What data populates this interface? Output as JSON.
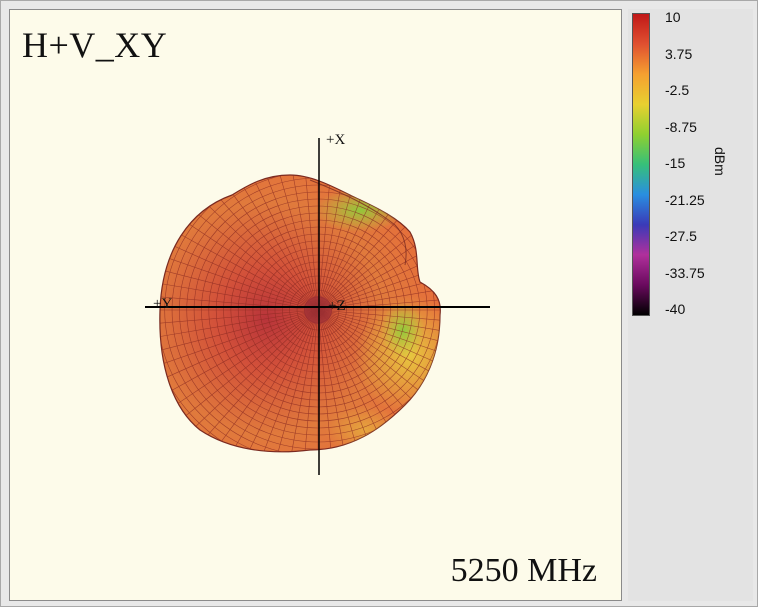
{
  "colors": {
    "plot_background": "#fdfbea",
    "panel_background": "#e3e3e3",
    "colormap": [
      "#000000",
      "#6a0a5e",
      "#b0309c",
      "#3a3ab8",
      "#2a8ee0",
      "#36c07a",
      "#8fd030",
      "#e8d030",
      "#f5a030",
      "#e05030",
      "#c01818"
    ]
  },
  "chart_data": {
    "type": "3d-radiation-pattern",
    "title": "H+V_XY",
    "frequency_label": "5250 MHz",
    "view": "XY",
    "axes": [
      "+X",
      "+Y",
      "+Z"
    ],
    "colorbar": {
      "unit": "dBm",
      "range": [
        -40,
        10
      ],
      "ticks": [
        "10",
        "3.75",
        "-2.5",
        "-8.75",
        "-15",
        "-21.25",
        "-27.5",
        "-33.75",
        "-40"
      ]
    }
  }
}
